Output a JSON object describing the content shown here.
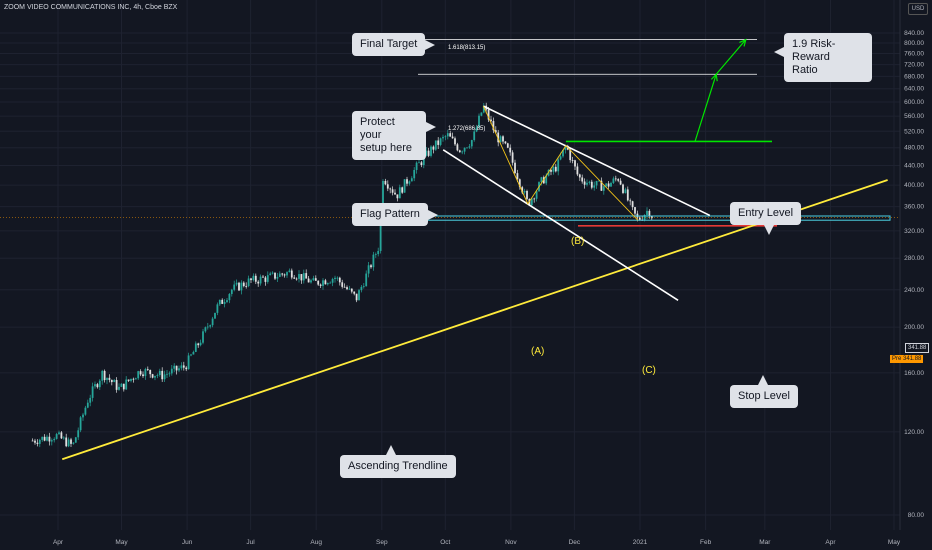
{
  "header": {
    "title": "ZOOM VIDEO COMMUNICATIONS INC, 4h, Cboe BZX",
    "currency": "USD"
  },
  "price_labels": {
    "last": "341.88",
    "pre_label": "Pre",
    "pre": "341.88"
  },
  "annotations": {
    "final_target": "Final Target",
    "protect": "Protect your\nsetup here",
    "flag_pattern": "Flag Pattern",
    "risk_reward": "1.9 Risk-Reward\nRatio",
    "entry_level": "Entry Level",
    "stop_level": "Stop Level",
    "ascending_trendline": "Ascending Trendline"
  },
  "waves": {
    "a": "(A)",
    "b": "(B)",
    "c": "(C)"
  },
  "fib_levels": {
    "level_1618": "1.618(813.15)",
    "level_1272": "1.272(686.85)"
  },
  "colors": {
    "background": "#131722",
    "up_candle": "#26a69a",
    "down_candle": "#e0e0e0",
    "trendline": "#ffeb3b",
    "entry": "#00e600",
    "stop": "#e53935",
    "support_zone": "#4dd0e1",
    "flag": "#ffffff",
    "fib": "#ffffff"
  },
  "chart_data": {
    "type": "candlestick",
    "title": "ZOOM VIDEO COMMUNICATIONS INC, 4h, Cboe BZX",
    "x_ticks": [
      "Apr",
      "May",
      "Jun",
      "Jul",
      "Aug",
      "Sep",
      "Oct",
      "Nov",
      "Dec",
      "2021",
      "Feb",
      "Mar",
      "Apr",
      "May"
    ],
    "y_ticks": [
      80,
      120,
      160,
      200,
      240,
      280,
      320,
      360,
      400,
      440,
      480,
      520,
      560,
      600,
      640,
      680,
      720,
      760,
      800,
      840
    ],
    "ylim": [
      65,
      860
    ],
    "y_scale": "log",
    "price_path": [
      {
        "x": "Mar 20",
        "y": 115
      },
      {
        "x": "Mar 31",
        "y": 118
      },
      {
        "x": "Apr 8",
        "y": 112
      },
      {
        "x": "Apr 15",
        "y": 140
      },
      {
        "x": "Apr 22",
        "y": 160
      },
      {
        "x": "Apr 30",
        "y": 148
      },
      {
        "x": "May 10",
        "y": 162
      },
      {
        "x": "May 20",
        "y": 158
      },
      {
        "x": "May 31",
        "y": 165
      },
      {
        "x": "Jun 8",
        "y": 190
      },
      {
        "x": "Jun 15",
        "y": 220
      },
      {
        "x": "Jun 22",
        "y": 240
      },
      {
        "x": "Jun 30",
        "y": 250
      },
      {
        "x": "Jul 10",
        "y": 255
      },
      {
        "x": "Jul 20",
        "y": 262
      },
      {
        "x": "Jul 31",
        "y": 248
      },
      {
        "x": "Aug 10",
        "y": 255
      },
      {
        "x": "Aug 20",
        "y": 230
      },
      {
        "x": "Aug 31",
        "y": 300
      },
      {
        "x": "Sep 1",
        "y": 420
      },
      {
        "x": "Sep 8",
        "y": 380
      },
      {
        "x": "Sep 18",
        "y": 440
      },
      {
        "x": "Sep 25",
        "y": 480
      },
      {
        "x": "Oct 2",
        "y": 510
      },
      {
        "x": "Oct 8",
        "y": 475
      },
      {
        "x": "Oct 14",
        "y": 500
      },
      {
        "x": "Oct 19",
        "y": 588
      },
      {
        "x": "Oct 25",
        "y": 510
      },
      {
        "x": "Oct 31",
        "y": 470
      },
      {
        "x": "Nov 9",
        "y": 365
      },
      {
        "x": "Nov 16",
        "y": 410
      },
      {
        "x": "Nov 23",
        "y": 440
      },
      {
        "x": "Nov 27",
        "y": 485
      },
      {
        "x": "Dec 3",
        "y": 415
      },
      {
        "x": "Dec 10",
        "y": 400
      },
      {
        "x": "Dec 16",
        "y": 398
      },
      {
        "x": "Dec 22",
        "y": 415
      },
      {
        "x": "Dec 28",
        "y": 355
      },
      {
        "x": "Dec 31",
        "y": 337
      },
      {
        "x": "Jan 5",
        "y": 355
      },
      {
        "x": "Jan 7",
        "y": 342
      }
    ],
    "levels": {
      "fib_1618": 813.15,
      "fib_1272": 686.85,
      "entry": 495,
      "stop": 328,
      "support_zone": [
        337,
        344
      ]
    },
    "trendline": {
      "from": {
        "x": "Apr 3",
        "y": 105
      },
      "to": {
        "x": "Apr 28 2021",
        "y": 410
      }
    },
    "flag": {
      "upper": {
        "from": {
          "x": "Oct 19",
          "y": 588
        },
        "to": {
          "x": "Feb 3",
          "y": 345
        }
      },
      "lower": {
        "from": {
          "x": "Sep 30",
          "y": 475
        },
        "to": {
          "x": "Jan 19",
          "y": 228
        }
      }
    },
    "waves": [
      {
        "label": "(A)",
        "x": "Nov 9",
        "y": 365
      },
      {
        "label": "(B)",
        "x": "Nov 27",
        "y": 485
      },
      {
        "label": "(C)",
        "x": "Dec 31",
        "y": 337
      }
    ],
    "projection": [
      {
        "x": "Jan 27",
        "y": 495
      },
      {
        "x": "Feb 6",
        "y": 686.85
      },
      {
        "x": "Feb 20",
        "y": 813.15
      }
    ]
  }
}
